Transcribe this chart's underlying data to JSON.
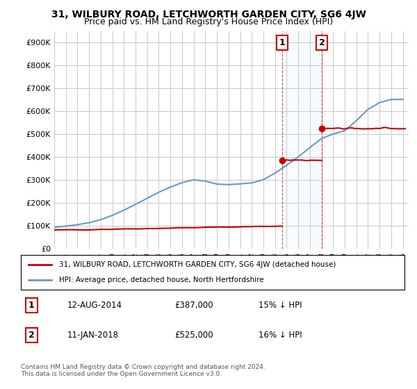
{
  "title": "31, WILBURY ROAD, LETCHWORTH GARDEN CITY, SG6 4JW",
  "subtitle": "Price paid vs. HM Land Registry's House Price Index (HPI)",
  "ylabel_ticks": [
    "£0",
    "£100K",
    "£200K",
    "£300K",
    "£400K",
    "£500K",
    "£600K",
    "£700K",
    "£800K",
    "£900K"
  ],
  "ytick_values": [
    0,
    100000,
    200000,
    300000,
    400000,
    500000,
    600000,
    700000,
    800000,
    900000
  ],
  "ylim": [
    0,
    950000
  ],
  "xlim_start": 1995.5,
  "xlim_end": 2025.5,
  "background_color": "#ffffff",
  "plot_bg_color": "#ffffff",
  "grid_color": "#cccccc",
  "red_line_color": "#cc0000",
  "blue_line_color": "#6699cc",
  "point1_x": 2014.6,
  "point1_y": 387000,
  "point2_x": 2018.04,
  "point2_y": 525000,
  "vline1_x": 2014.6,
  "vline2_x": 2018.04,
  "legend_label_red": "31, WILBURY ROAD, LETCHWORTH GARDEN CITY, SG6 4JW (detached house)",
  "legend_label_blue": "HPI: Average price, detached house, North Hertfordshire",
  "annotation1_label": "1",
  "annotation2_label": "2",
  "table_row1": [
    "1",
    "12-AUG-2014",
    "£387,000",
    "15% ↓ HPI"
  ],
  "table_row2": [
    "2",
    "11-JAN-2018",
    "£525,000",
    "16% ↓ HPI"
  ],
  "footer": "Contains HM Land Registry data © Crown copyright and database right 2024.\nThis data is licensed under the Open Government Licence v3.0.",
  "title_fontsize": 10,
  "subtitle_fontsize": 9,
  "tick_fontsize": 8,
  "years": [
    1995,
    1996,
    1997,
    1998,
    1999,
    2000,
    2001,
    2002,
    2003,
    2004,
    2005,
    2006,
    2007,
    2008,
    2009,
    2010,
    2011,
    2012,
    2013,
    2014,
    2015,
    2016,
    2017,
    2018,
    2019,
    2020,
    2021,
    2022,
    2023,
    2024,
    2025
  ],
  "hpi_values": [
    92000,
    100000,
    105000,
    113000,
    126000,
    145000,
    168000,
    195000,
    220000,
    250000,
    270000,
    290000,
    310000,
    300000,
    275000,
    280000,
    285000,
    285000,
    295000,
    330000,
    365000,
    400000,
    440000,
    490000,
    510000,
    495000,
    560000,
    620000,
    640000,
    660000,
    650000
  ],
  "hpi_smooth": true,
  "property_segments": [
    {
      "x": [
        1995.0,
        2014.6
      ],
      "y": [
        82000,
        82000
      ]
    },
    {
      "x": [
        2014.6,
        2018.04
      ],
      "y": [
        387000,
        387000
      ]
    },
    {
      "x": [
        2018.04,
        2025.0
      ],
      "y": [
        525000,
        525000
      ]
    }
  ]
}
